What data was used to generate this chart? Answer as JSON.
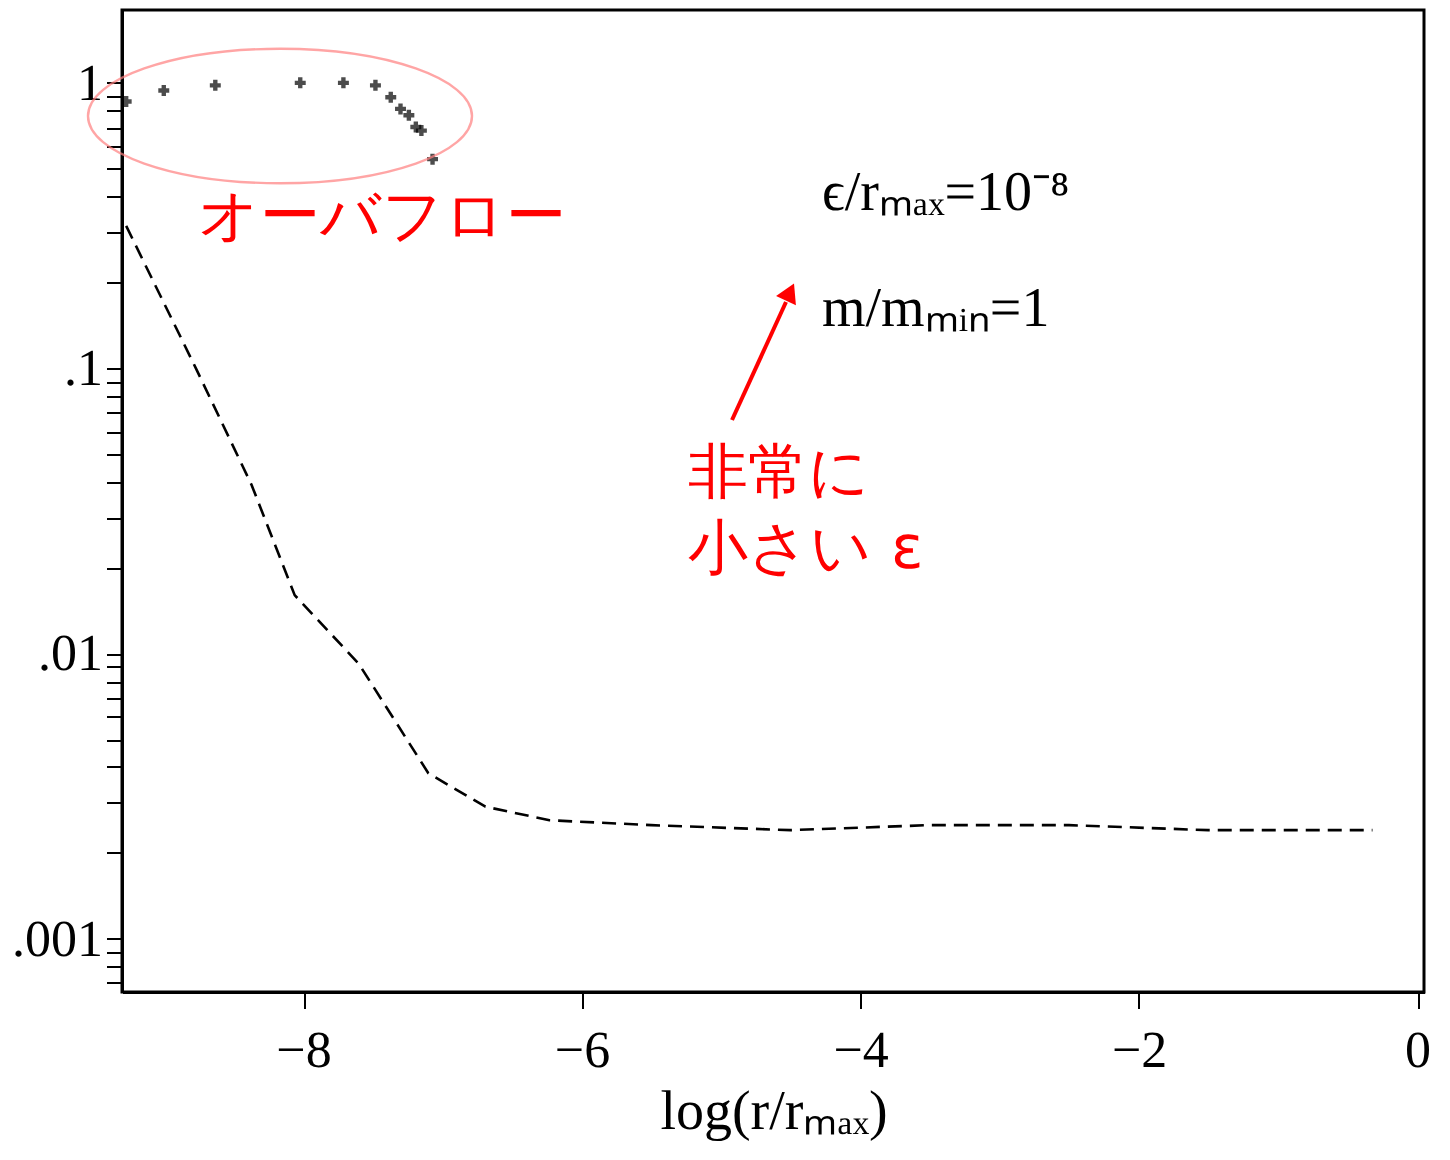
{
  "chart_data": {
    "type": "line",
    "xlabel": "log(r/rₘₐₓ)",
    "xlim": [
      -9.3,
      0.05
    ],
    "xticks": [
      -8,
      -6,
      -4,
      -2,
      0
    ],
    "ylim": [
      0.00065,
      1.8
    ],
    "log": "y",
    "yticks": [
      {
        "value": 1,
        "label": "1"
      },
      {
        "value": 0.1,
        "label": ".1"
      },
      {
        "value": 0.01,
        "label": ".01"
      },
      {
        "value": 0.001,
        "label": ".001"
      },
      {
        "value": 0.0007,
        "label": null
      },
      {
        "value": 0.0008,
        "label": null
      },
      {
        "value": 0.0009,
        "label": null
      },
      {
        "value": 0.002,
        "label": null
      },
      {
        "value": 0.003,
        "label": null
      },
      {
        "value": 0.004,
        "label": null
      },
      {
        "value": 0.005,
        "label": null
      },
      {
        "value": 0.006,
        "label": null
      },
      {
        "value": 0.007,
        "label": null
      },
      {
        "value": 0.008,
        "label": null
      },
      {
        "value": 0.009,
        "label": null
      },
      {
        "value": 0.02,
        "label": null
      },
      {
        "value": 0.03,
        "label": null
      },
      {
        "value": 0.04,
        "label": null
      },
      {
        "value": 0.05,
        "label": null
      },
      {
        "value": 0.06,
        "label": null
      },
      {
        "value": 0.07,
        "label": null
      },
      {
        "value": 0.08,
        "label": null
      },
      {
        "value": 0.09,
        "label": null
      },
      {
        "value": 0.2,
        "label": null
      },
      {
        "value": 0.3,
        "label": null
      },
      {
        "value": 0.4,
        "label": null
      },
      {
        "value": 0.5,
        "label": null
      },
      {
        "value": 0.6,
        "label": null
      },
      {
        "value": 0.7,
        "label": null
      },
      {
        "value": 0.8,
        "label": null
      },
      {
        "value": 0.9,
        "label": null
      }
    ],
    "grid": false,
    "series": [
      {
        "line_style": "dashed",
        "color": "#000000",
        "x": [
          -9.27,
          -8.77,
          -8.37,
          -8.06,
          -7.6,
          -7.1,
          -6.69,
          -6.23,
          -5.5,
          -4.5,
          -3.5,
          -2.5,
          -1.5,
          -0.32
        ],
        "values": [
          0.315,
          0.1,
          0.039,
          0.016,
          0.0092,
          0.0038,
          0.0029,
          0.0026,
          0.0025,
          0.0024,
          0.0025,
          0.0025,
          0.0024,
          0.0024
        ]
      },
      {
        "type": "scatter",
        "marker": "cross",
        "color": "#000000",
        "x": [
          -9.27,
          -9.0,
          -8.63,
          -8.02,
          -7.71,
          -7.48,
          -7.37,
          -7.3,
          -7.24,
          -7.19,
          -7.15,
          -7.07
        ],
        "values": [
          0.86,
          0.94,
          0.98,
          1.0,
          1.0,
          0.98,
          0.89,
          0.81,
          0.77,
          0.7,
          0.68,
          0.54
        ]
      }
    ],
    "annotations": [
      "オーバフロー",
      "ϵ/rₘₐₓ=10⁻⁸",
      "m/mₘᵢₙ=1",
      "非常に",
      "小さい ε"
    ]
  }
}
